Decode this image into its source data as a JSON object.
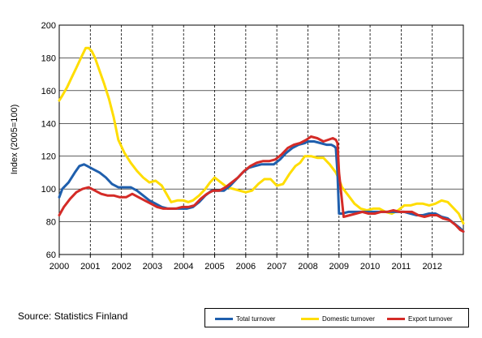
{
  "chart_data": {
    "type": "line",
    "title": "",
    "xlabel": "",
    "ylabel": "Index (2005=100)",
    "xlim": [
      2000,
      2013
    ],
    "ylim": [
      60,
      200
    ],
    "yticks": [
      60,
      80,
      100,
      120,
      140,
      160,
      180,
      200
    ],
    "xticks": [
      "2000",
      "2001",
      "2002",
      "2003",
      "2004",
      "2005",
      "2006",
      "2007",
      "2008",
      "2009",
      "2010",
      "2011",
      "2012"
    ],
    "grid": "vertical dashed at year boundaries, horizontal solid at y ticks",
    "legend_position": "bottom-right",
    "series": [
      {
        "name": "Total turnover",
        "color": "#1f5fad",
        "x": [
          2000.0,
          2000.1,
          2000.3,
          2000.5,
          2000.65,
          2000.8,
          2000.9,
          2001.1,
          2001.3,
          2001.5,
          2001.7,
          2001.9,
          2002.1,
          2002.3,
          2002.5,
          2002.7,
          2002.9,
          2003.1,
          2003.3,
          2003.5,
          2003.7,
          2003.9,
          2004.1,
          2004.3,
          2004.5,
          2004.7,
          2004.9,
          2005.1,
          2005.3,
          2005.5,
          2005.7,
          2005.9,
          2006.1,
          2006.3,
          2006.5,
          2006.7,
          2006.9,
          2007.1,
          2007.3,
          2007.5,
          2007.7,
          2007.9,
          2008.0,
          2008.2,
          2008.4,
          2008.6,
          2008.75,
          2008.85,
          2008.9,
          2008.95,
          2009.0,
          2009.1,
          2009.3,
          2009.5,
          2009.7,
          2009.9,
          2010.1,
          2010.3,
          2010.5,
          2010.7,
          2010.9,
          2011.1,
          2011.3,
          2011.5,
          2011.7,
          2011.9,
          2012.1,
          2012.3,
          2012.5,
          2012.7,
          2012.9,
          2013.0
        ],
        "values": [
          95,
          100,
          104,
          110,
          114,
          115,
          114,
          112,
          110,
          107,
          103,
          101,
          101,
          101,
          99,
          96,
          93,
          91,
          89,
          88,
          88,
          88,
          88,
          89,
          92,
          96,
          99,
          99,
          99,
          102,
          106,
          110,
          113,
          114,
          115,
          115,
          115,
          118,
          122,
          125,
          127,
          128,
          129,
          129,
          128,
          127,
          127,
          126,
          125,
          110,
          85,
          85,
          86,
          86,
          86,
          86,
          86,
          86,
          86,
          86,
          86,
          86,
          85,
          84,
          84,
          85,
          85,
          83,
          82,
          79,
          76,
          74
        ]
      },
      {
        "name": "Domestic turnover",
        "color": "#ffdd00",
        "x": [
          2000.0,
          2000.1,
          2000.25,
          2000.4,
          2000.55,
          2000.7,
          2000.85,
          2000.95,
          2001.05,
          2001.15,
          2001.3,
          2001.45,
          2001.6,
          2001.75,
          2001.9,
          2002.1,
          2002.3,
          2002.5,
          2002.7,
          2002.9,
          2003.1,
          2003.3,
          2003.45,
          2003.6,
          2003.8,
          2004.0,
          2004.15,
          2004.3,
          2004.5,
          2004.7,
          2004.85,
          2005.0,
          2005.2,
          2005.4,
          2005.6,
          2005.8,
          2006.0,
          2006.2,
          2006.4,
          2006.6,
          2006.8,
          2007.0,
          2007.2,
          2007.4,
          2007.6,
          2007.75,
          2007.9,
          2008.1,
          2008.3,
          2008.5,
          2008.7,
          2008.9,
          2009.0,
          2009.1,
          2009.3,
          2009.5,
          2009.7,
          2009.9,
          2010.1,
          2010.3,
          2010.5,
          2010.7,
          2010.9,
          2011.1,
          2011.3,
          2011.5,
          2011.7,
          2011.9,
          2012.1,
          2012.3,
          2012.5,
          2012.7,
          2012.85,
          2013.0
        ],
        "values": [
          154,
          157,
          162,
          168,
          174,
          180,
          186,
          186,
          184,
          180,
          172,
          164,
          155,
          144,
          130,
          122,
          116,
          111,
          107,
          104,
          105,
          102,
          97,
          92,
          93,
          93,
          92,
          93,
          96,
          100,
          104,
          107,
          104,
          101,
          100,
          99,
          98,
          99,
          103,
          106,
          106,
          102,
          103,
          109,
          114,
          116,
          120,
          120,
          119,
          119,
          115,
          110,
          106,
          101,
          96,
          91,
          88,
          87,
          88,
          88,
          86,
          85,
          87,
          90,
          90,
          91,
          91,
          90,
          91,
          93,
          92,
          88,
          85,
          79
        ]
      },
      {
        "name": "Export turnover",
        "color": "#d42b27",
        "x": [
          2000.0,
          2000.15,
          2000.35,
          2000.55,
          2000.75,
          2000.95,
          2001.15,
          2001.35,
          2001.55,
          2001.75,
          2001.95,
          2002.15,
          2002.35,
          2002.55,
          2002.75,
          2002.95,
          2003.15,
          2003.35,
          2003.55,
          2003.75,
          2003.95,
          2004.15,
          2004.35,
          2004.55,
          2004.75,
          2004.95,
          2005.15,
          2005.35,
          2005.55,
          2005.75,
          2005.95,
          2006.15,
          2006.35,
          2006.55,
          2006.75,
          2006.95,
          2007.15,
          2007.35,
          2007.55,
          2007.75,
          2007.95,
          2008.1,
          2008.3,
          2008.5,
          2008.65,
          2008.8,
          2008.9,
          2008.95,
          2009.0,
          2009.15,
          2009.35,
          2009.55,
          2009.75,
          2009.95,
          2010.15,
          2010.35,
          2010.55,
          2010.75,
          2010.95,
          2011.15,
          2011.35,
          2011.55,
          2011.75,
          2011.95,
          2012.15,
          2012.35,
          2012.55,
          2012.75,
          2012.9,
          2013.0
        ],
        "values": [
          84,
          89,
          94,
          98,
          100,
          101,
          99,
          97,
          96,
          96,
          95,
          95,
          97,
          95,
          93,
          91,
          89,
          88,
          88,
          88,
          89,
          89,
          90,
          94,
          97,
          99,
          99,
          101,
          104,
          107,
          111,
          114,
          116,
          117,
          117,
          118,
          121,
          125,
          127,
          128,
          130,
          132,
          131,
          129,
          130,
          131,
          130,
          128,
          110,
          83,
          84,
          85,
          86,
          85,
          85,
          86,
          86,
          87,
          86,
          86,
          86,
          84,
          83,
          84,
          84,
          82,
          81,
          78,
          75,
          74
        ]
      }
    ],
    "legend": [
      "Total turnover",
      "Domestic turnover",
      "Export turnover"
    ]
  },
  "footer": {
    "source": "Source: Statistics Finland"
  }
}
